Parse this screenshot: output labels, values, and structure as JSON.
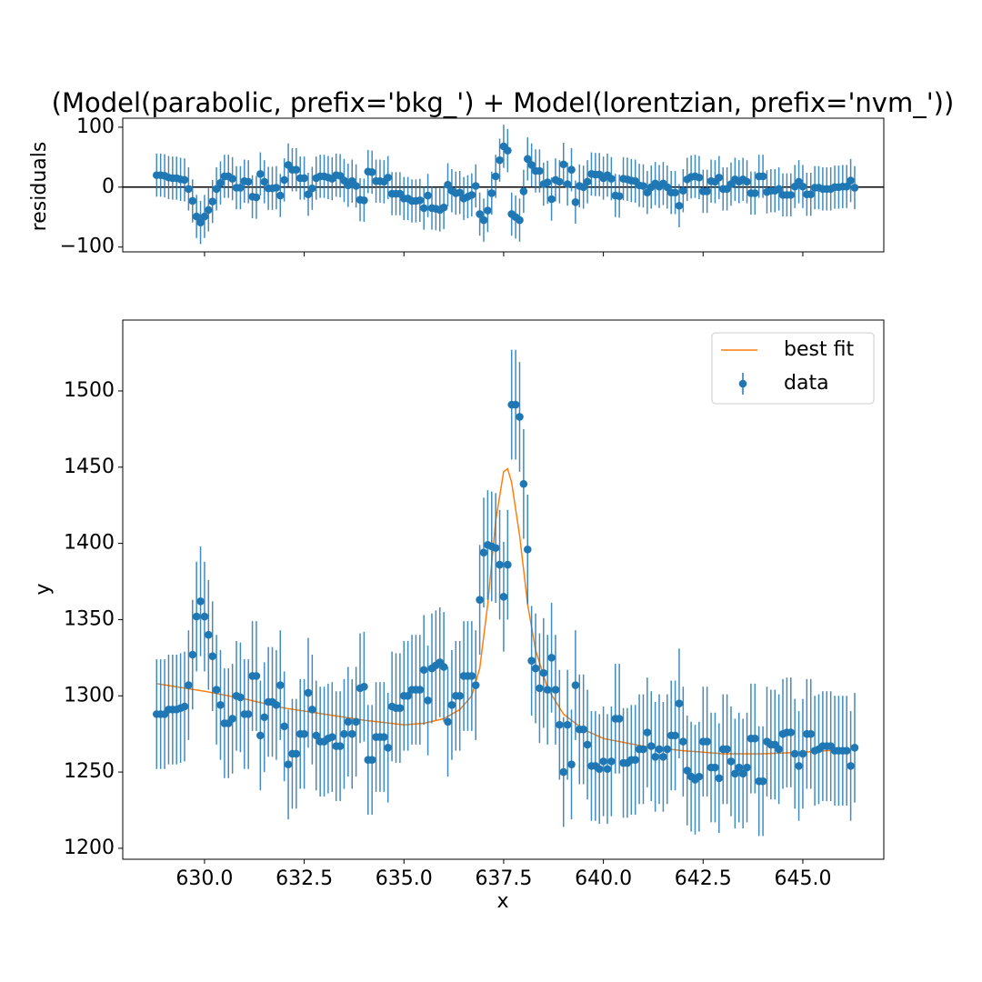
{
  "chart_data": [
    {
      "type": "errorbar",
      "title": "(Model(parabolic, prefix='bkg_') + Model(lorentzian, prefix='nvm_'))",
      "ylabel": "residuals",
      "xlim": [
        627.95,
        647.03
      ],
      "ylim": [
        -108,
        115
      ],
      "yticks": [
        {
          "value": -100,
          "label": "−100"
        },
        0,
        100
      ],
      "hline": 0,
      "series": [
        {
          "name": "residuals",
          "color": "#1f77b4",
          "yerr": 36,
          "values": [
            20,
            20,
            19,
            16,
            15,
            15,
            13,
            12,
            -3,
            -23,
            -49,
            -59,
            -49,
            -38,
            -24,
            -3,
            7,
            18,
            18,
            14,
            -1,
            -1,
            10,
            9,
            -16,
            -17,
            22,
            9,
            -2,
            -2,
            -1,
            -14,
            12,
            37,
            29,
            29,
            15,
            15,
            -12,
            -2,
            15,
            18,
            18,
            16,
            14,
            20,
            19,
            11,
            3,
            10,
            2,
            -21,
            -22,
            26,
            25,
            10,
            10,
            9,
            16,
            -11,
            -11,
            -11,
            -19,
            -19,
            -23,
            -23,
            -22,
            -35,
            -14,
            -35,
            -36,
            -38,
            -34,
            4,
            -6,
            -10,
            -9,
            -19,
            -16,
            -13,
            2,
            -45,
            -55,
            -39,
            -10,
            18,
            45,
            68,
            61,
            -45,
            -50,
            -55,
            -7,
            47,
            37,
            27,
            27,
            5,
            8,
            -20,
            12,
            9,
            38,
            5,
            29,
            -25,
            2,
            0,
            9,
            22,
            21,
            21,
            15,
            20,
            14,
            -14,
            -15,
            14,
            13,
            11,
            10,
            3,
            2,
            -9,
            0,
            6,
            1,
            6,
            0,
            -9,
            -9,
            -31,
            -6,
            13,
            17,
            18,
            16,
            -7,
            -7,
            10,
            9,
            16,
            -3,
            -3,
            5,
            13,
            9,
            13,
            9,
            -10,
            -10,
            18,
            18,
            -8,
            -6,
            -6,
            -3,
            -13,
            -13,
            -13,
            1,
            9,
            1,
            -12,
            -12,
            -1,
            -1,
            -3,
            -3,
            -3,
            0,
            0,
            1,
            1,
            11,
            -1
          ]
        }
      ]
    },
    {
      "type": "errorbar",
      "xlabel": "x",
      "ylabel": "y",
      "xlim": [
        627.95,
        647.03
      ],
      "ylim": [
        1192.8,
        1546.5
      ],
      "xticks": [
        {
          "value": 630,
          "label": "630.0"
        },
        {
          "value": 632.5,
          "label": "632.5"
        },
        {
          "value": 635,
          "label": "635.0"
        },
        {
          "value": 637.5,
          "label": "637.5"
        },
        {
          "value": 640,
          "label": "640.0"
        },
        {
          "value": 642.5,
          "label": "642.5"
        },
        {
          "value": 645,
          "label": "645.0"
        }
      ],
      "yticks": [
        1200,
        1250,
        1300,
        1350,
        1400,
        1450,
        1500
      ],
      "legend": "upper right",
      "x": [
        628.8,
        628.9,
        629.0,
        629.1,
        629.2,
        629.3,
        629.4,
        629.5,
        629.6,
        629.7,
        629.8,
        629.9,
        630.0,
        630.1,
        630.2,
        630.3,
        630.4,
        630.5,
        630.6,
        630.7,
        630.8,
        630.9,
        631.0,
        631.1,
        631.2,
        631.3,
        631.4,
        631.5,
        631.6,
        631.7,
        631.8,
        631.9,
        632.0,
        632.1,
        632.2,
        632.3,
        632.4,
        632.5,
        632.6,
        632.7,
        632.8,
        632.9,
        633.0,
        633.1,
        633.2,
        633.3,
        633.4,
        633.5,
        633.6,
        633.7,
        633.8,
        633.9,
        634.0,
        634.1,
        634.2,
        634.3,
        634.4,
        634.5,
        634.6,
        634.7,
        634.8,
        634.9,
        635.0,
        635.1,
        635.2,
        635.3,
        635.4,
        635.5,
        635.6,
        635.7,
        635.8,
        635.9,
        636.0,
        636.1,
        636.2,
        636.3,
        636.4,
        636.5,
        636.6,
        636.7,
        636.8,
        636.9,
        637.0,
        637.1,
        637.2,
        637.3,
        637.4,
        637.5,
        637.6,
        637.7,
        637.8,
        637.9,
        638.0,
        638.1,
        638.2,
        638.3,
        638.4,
        638.5,
        638.6,
        638.7,
        638.8,
        638.9,
        639.0,
        639.1,
        639.2,
        639.3,
        639.4,
        639.5,
        639.6,
        639.7,
        639.8,
        639.9,
        640.0,
        640.1,
        640.2,
        640.3,
        640.4,
        640.5,
        640.6,
        640.7,
        640.8,
        640.9,
        641.0,
        641.1,
        641.2,
        641.3,
        641.4,
        641.5,
        641.6,
        641.7,
        641.8,
        641.9,
        642.0,
        642.1,
        642.2,
        642.3,
        642.4,
        642.5,
        642.6,
        642.7,
        642.8,
        642.9,
        643.0,
        643.1,
        643.2,
        643.3,
        643.4,
        643.5,
        643.6,
        643.7,
        643.8,
        643.9,
        644.0,
        644.1,
        644.2,
        644.3,
        644.4,
        644.5,
        644.6,
        644.7,
        644.8,
        644.9,
        645.0,
        645.1,
        645.2,
        645.3,
        645.4,
        645.5,
        645.6,
        645.7,
        645.8,
        645.9,
        646.0,
        646.1,
        646.2,
        646.3
      ],
      "series": [
        {
          "name": "best fit",
          "color": "#ff7f0e",
          "x": [
            628.8,
            630,
            631,
            632,
            633,
            634,
            635,
            635.5,
            636,
            636.4,
            636.7,
            636.9,
            637.1,
            637.3,
            637.5,
            637.6,
            637.7,
            637.9,
            638.1,
            638.3,
            638.6,
            639,
            639.5,
            640,
            641,
            642,
            643,
            644,
            645,
            646.2
          ],
          "values": [
            1308,
            1303,
            1298,
            1292,
            1288,
            1284,
            1281,
            1282,
            1285,
            1291,
            1300,
            1318,
            1360,
            1415,
            1447,
            1449,
            1440,
            1405,
            1360,
            1330,
            1305,
            1288,
            1278,
            1272,
            1267,
            1264,
            1262,
            1262,
            1263,
            1265
          ]
        },
        {
          "name": "data",
          "color": "#1f77b4",
          "yerr": 36,
          "values": [
            1288,
            1288,
            1288,
            1291,
            1291,
            1291,
            1292,
            1293,
            1307,
            1327,
            1352,
            1362,
            1352,
            1340,
            1326,
            1304,
            1294,
            1282,
            1282,
            1285,
            1300,
            1299,
            1288,
            1288,
            1313,
            1313,
            1274,
            1286,
            1296,
            1296,
            1294,
            1307,
            1280,
            1255,
            1262,
            1262,
            1275,
            1275,
            1302,
            1291,
            1274,
            1270,
            1270,
            1272,
            1273,
            1267,
            1267,
            1275,
            1283,
            1275,
            1283,
            1305,
            1306,
            1258,
            1258,
            1273,
            1273,
            1273,
            1266,
            1293,
            1292,
            1292,
            1300,
            1300,
            1304,
            1304,
            1304,
            1317,
            1297,
            1318,
            1320,
            1322,
            1319,
            1283,
            1294,
            1300,
            1300,
            1313,
            1313,
            1313,
            1307,
            1363,
            1394,
            1399,
            1398,
            1397,
            1386,
            1365,
            1386,
            1491,
            1491,
            1483,
            1439,
            1396,
            1323,
            1318,
            1305,
            1315,
            1304,
            1325,
            1304,
            1281,
            1250,
            1281,
            1255,
            1307,
            1278,
            1278,
            1268,
            1254,
            1254,
            1252,
            1257,
            1252,
            1257,
            1285,
            1285,
            1256,
            1256,
            1258,
            1258,
            1265,
            1265,
            1276,
            1267,
            1260,
            1265,
            1260,
            1265,
            1274,
            1274,
            1295,
            1270,
            1251,
            1247,
            1245,
            1247,
            1270,
            1270,
            1253,
            1253,
            1246,
            1265,
            1265,
            1257,
            1249,
            1253,
            1249,
            1253,
            1272,
            1272,
            1244,
            1244,
            1270,
            1268,
            1268,
            1265,
            1275,
            1276,
            1276,
            1262,
            1254,
            1262,
            1275,
            1275,
            1264,
            1265,
            1267,
            1267,
            1267,
            1264,
            1264,
            1264,
            1264,
            1254,
            1266
          ]
        }
      ]
    }
  ]
}
